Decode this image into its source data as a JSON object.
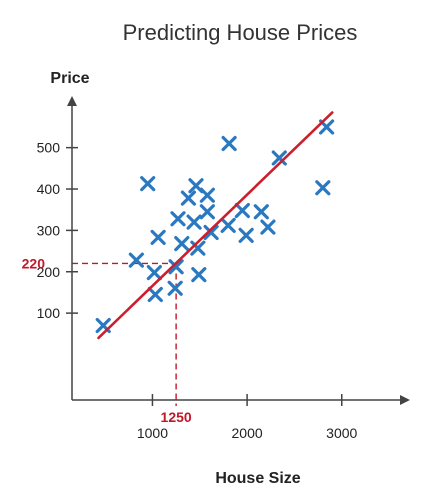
{
  "chart_data": {
    "type": "scatter",
    "title": "Predicting House Prices",
    "xlabel": "House Size",
    "ylabel": "Price",
    "xlim": [
      150,
      3700
    ],
    "ylim": [
      -110,
      620
    ],
    "x_ticks": [
      1000,
      2000,
      3000
    ],
    "y_ticks": [
      100,
      200,
      300,
      400,
      500
    ],
    "grid": false,
    "legend": "none",
    "colors": {
      "marker": "#2a78c0",
      "line": "#cc1f2e",
      "annotation": "#c0182a",
      "axis": "#444444"
    },
    "points": [
      {
        "x": 480,
        "y": 70
      },
      {
        "x": 830,
        "y": 228
      },
      {
        "x": 950,
        "y": 413
      },
      {
        "x": 1020,
        "y": 198
      },
      {
        "x": 1030,
        "y": 145
      },
      {
        "x": 1060,
        "y": 283
      },
      {
        "x": 1240,
        "y": 160
      },
      {
        "x": 1250,
        "y": 212
      },
      {
        "x": 1270,
        "y": 328
      },
      {
        "x": 1310,
        "y": 268
      },
      {
        "x": 1380,
        "y": 378
      },
      {
        "x": 1440,
        "y": 320
      },
      {
        "x": 1460,
        "y": 408
      },
      {
        "x": 1480,
        "y": 257
      },
      {
        "x": 1490,
        "y": 193
      },
      {
        "x": 1580,
        "y": 385
      },
      {
        "x": 1580,
        "y": 345
      },
      {
        "x": 1620,
        "y": 295
      },
      {
        "x": 1800,
        "y": 312
      },
      {
        "x": 1810,
        "y": 510
      },
      {
        "x": 1950,
        "y": 348
      },
      {
        "x": 1990,
        "y": 288
      },
      {
        "x": 2150,
        "y": 345
      },
      {
        "x": 2220,
        "y": 308
      },
      {
        "x": 2340,
        "y": 475
      },
      {
        "x": 2800,
        "y": 403
      },
      {
        "x": 2840,
        "y": 550
      }
    ],
    "regression_line": {
      "x": [
        430,
        2900
      ],
      "y": [
        40,
        585
      ]
    },
    "annotation": {
      "x": 1250,
      "y": 220,
      "x_label": "1250",
      "y_label": "220"
    }
  }
}
